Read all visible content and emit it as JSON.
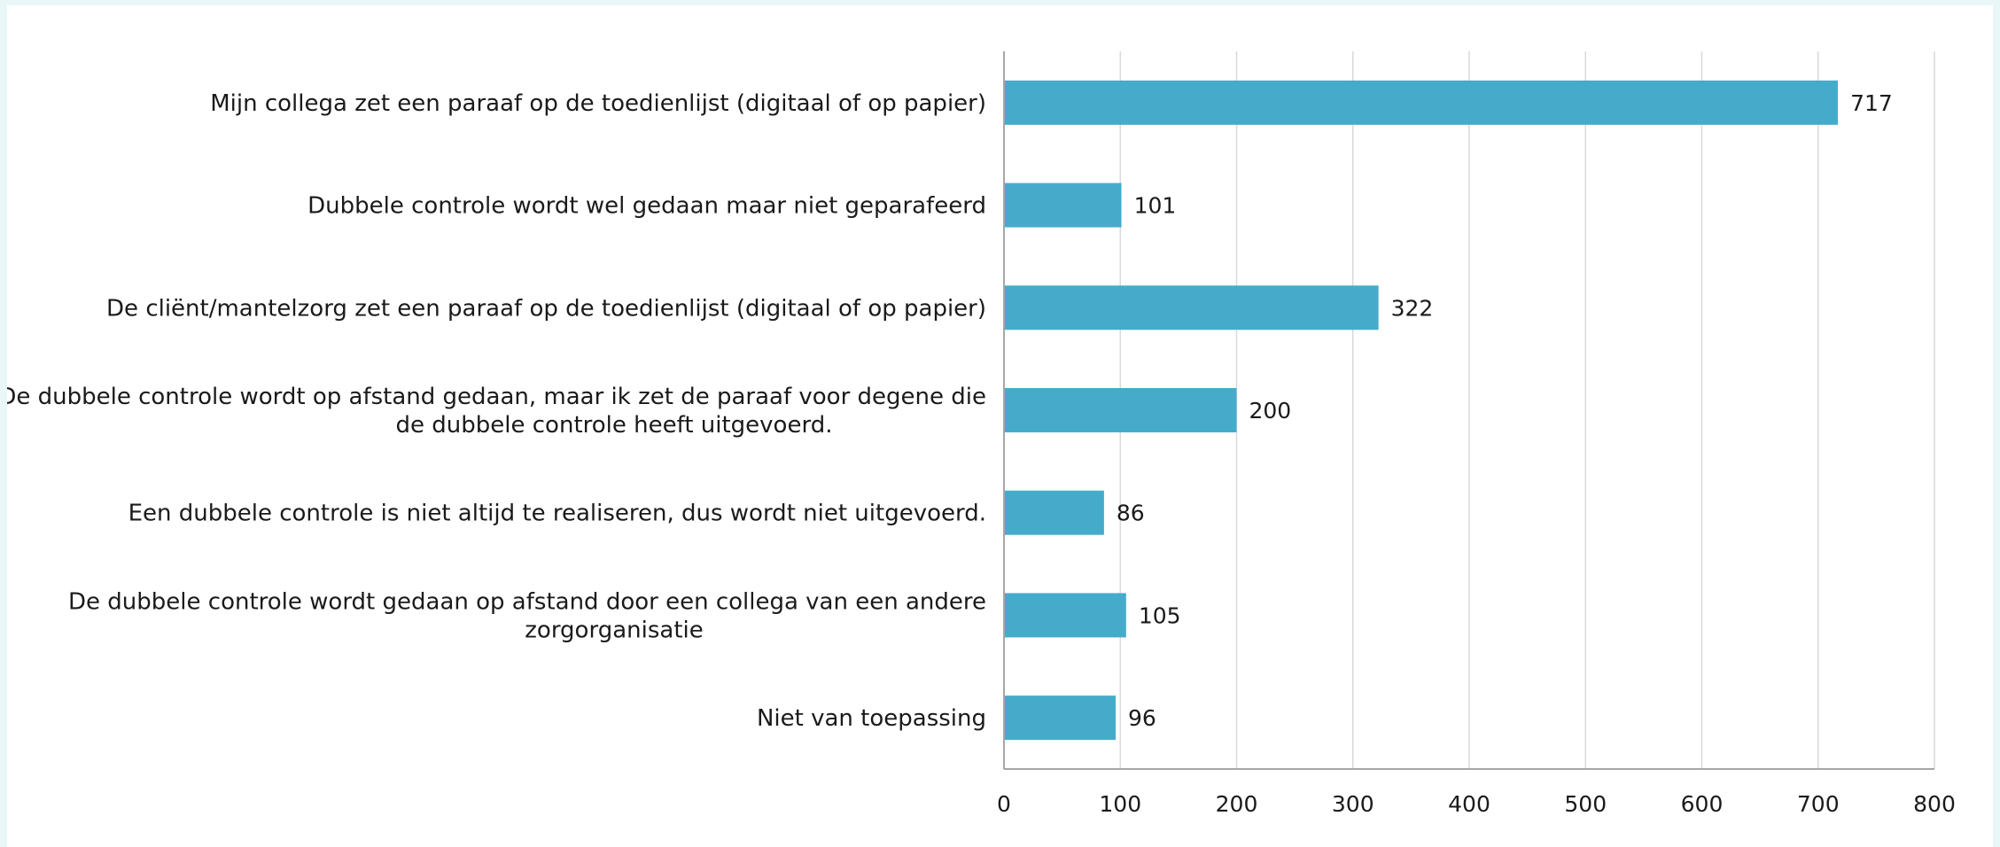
{
  "chart_data": {
    "type": "bar",
    "orientation": "horizontal",
    "categories": [
      [
        "Mijn collega zet een paraaf op de toedienlijst (digitaal of op papier)"
      ],
      [
        "Dubbele controle wordt wel gedaan maar niet geparafeerd"
      ],
      [
        "De cliënt/mantelzorg zet een paraaf op de toedienlijst (digitaal of op papier)"
      ],
      [
        "De dubbele controle wordt op afstand gedaan, maar ik zet de paraaf voor degene die",
        "de dubbele controle heeft uitgevoerd."
      ],
      [
        "Een dubbele controle is niet altijd te realiseren, dus wordt niet uitgevoerd."
      ],
      [
        "De dubbele controle wordt gedaan op afstand door een collega van een andere",
        "zorgorganisatie"
      ],
      [
        "Niet van toepassing"
      ]
    ],
    "values": [
      717,
      101,
      322,
      200,
      86,
      105,
      96
    ],
    "data_labels": [
      "717",
      "101",
      "322",
      "200",
      "86",
      "105",
      "96"
    ],
    "xlim": [
      0,
      800
    ],
    "x_ticks": [
      "0",
      "100",
      "200",
      "300",
      "400",
      "500",
      "600",
      "700",
      "800"
    ],
    "grid": true,
    "bar_color": "#46abcb",
    "grid_color": "#d9d9d9",
    "axis_color": "#a6a6a6"
  }
}
